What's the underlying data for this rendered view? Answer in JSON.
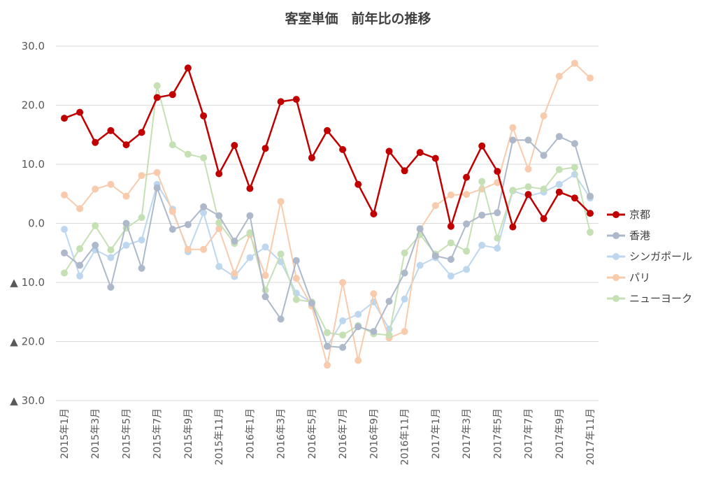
{
  "chart_data": {
    "type": "line",
    "title": "客室単価　前年比の推移",
    "xlabel": "",
    "ylabel": "",
    "ylim": [
      -30,
      30
    ],
    "yticks": [
      {
        "value": 30,
        "label": "30.0"
      },
      {
        "value": 20,
        "label": "20.0"
      },
      {
        "value": 10,
        "label": "10.0"
      },
      {
        "value": 0,
        "label": "0.0"
      },
      {
        "value": -10,
        "label": "▲ 10.0"
      },
      {
        "value": -20,
        "label": "▲ 20.0"
      },
      {
        "value": -30,
        "label": "▲ 30.0"
      }
    ],
    "grid": true,
    "legend_position": "right",
    "categories": [
      "2015年1月",
      "2015年2月",
      "2015年3月",
      "2015年4月",
      "2015年5月",
      "2015年6月",
      "2015年7月",
      "2015年8月",
      "2015年9月",
      "2015年10月",
      "2015年11月",
      "2015年12月",
      "2016年1月",
      "2016年2月",
      "2016年3月",
      "2016年4月",
      "2016年5月",
      "2016年6月",
      "2016年7月",
      "2016年8月",
      "2016年9月",
      "2016年10月",
      "2016年11月",
      "2016年12月",
      "2017年1月",
      "2017年2月",
      "2017年3月",
      "2017年4月",
      "2017年5月",
      "2017年6月",
      "2017年7月",
      "2017年8月",
      "2017年9月",
      "2017年10月",
      "2017年11月"
    ],
    "tick_labels": [
      "2015年1月",
      "",
      "2015年3月",
      "",
      "2015年5月",
      "",
      "2015年7月",
      "",
      "2015年9月",
      "",
      "2015年11月",
      "",
      "2016年1月",
      "",
      "2016年3月",
      "",
      "2016年5月",
      "",
      "2016年7月",
      "",
      "2016年9月",
      "",
      "2016年11月",
      "",
      "2017年1月",
      "",
      "2017年3月",
      "",
      "2017年5月",
      "",
      "2017年7月",
      "",
      "2017年9月",
      "",
      "2017年11月"
    ],
    "series": [
      {
        "name": "シンガポール",
        "color": "#bdd7ee",
        "width": 2,
        "values": [
          -1.0,
          -8.9,
          -4.5,
          -5.8,
          -3.7,
          -2.8,
          6.6,
          2.4,
          -4.8,
          1.8,
          -7.3,
          -9.0,
          -5.8,
          -4.0,
          -6.5,
          -11.8,
          -13.4,
          -20.8,
          -16.5,
          -15.4,
          -13.3,
          -17.9,
          -12.8,
          -7.1,
          -5.8,
          -8.9,
          -7.8,
          -3.7,
          -4.2,
          5.5,
          4.6,
          5.3,
          6.6,
          8.3,
          4.3
        ]
      },
      {
        "name": "パリ",
        "color": "#f8cbad",
        "width": 2,
        "values": [
          4.8,
          2.5,
          5.8,
          6.6,
          4.6,
          8.1,
          8.6,
          2.0,
          -4.4,
          -4.4,
          -0.9,
          -8.5,
          -1.9,
          -8.8,
          3.7,
          -9.3,
          -14.0,
          -24.0,
          -10.0,
          -23.2,
          -11.9,
          -19.4,
          -18.3,
          -1.0,
          3.0,
          4.8,
          4.9,
          5.8,
          6.9,
          16.2,
          9.2,
          18.2,
          24.9,
          27.1,
          24.6
        ]
      },
      {
        "name": "ニューヨーク",
        "color": "#c5e0b4",
        "width": 2,
        "values": [
          -8.4,
          -4.3,
          -0.4,
          -4.5,
          -0.8,
          1.0,
          23.3,
          13.3,
          11.7,
          11.1,
          0.1,
          -3.4,
          -1.6,
          -11.3,
          -5.2,
          -12.9,
          -13.3,
          -18.5,
          -18.9,
          -17.3,
          -18.7,
          -18.9,
          -5.0,
          -1.9,
          -5.2,
          -3.3,
          -4.7,
          7.1,
          -2.5,
          5.6,
          6.2,
          5.8,
          9.1,
          9.5,
          -1.5
        ]
      },
      {
        "name": "香港",
        "color": "#adb9ca",
        "width": 2,
        "values": [
          -5.0,
          -7.1,
          -3.7,
          -10.8,
          0.0,
          -7.6,
          6.0,
          -1.0,
          -0.2,
          2.8,
          1.3,
          -3.0,
          1.3,
          -12.4,
          -16.2,
          -6.3,
          -13.5,
          -20.8,
          -21.0,
          -17.5,
          -18.3,
          -13.2,
          -8.4,
          -0.9,
          -5.5,
          -6.1,
          -0.1,
          1.4,
          1.8,
          14.1,
          14.1,
          11.5,
          14.7,
          13.5,
          4.6
        ]
      },
      {
        "name": "京都",
        "color": "#c00000",
        "width": 2.5,
        "values": [
          17.8,
          18.8,
          13.7,
          15.7,
          13.3,
          15.4,
          21.3,
          21.8,
          26.3,
          18.2,
          8.4,
          13.2,
          5.9,
          12.7,
          20.6,
          21.0,
          11.1,
          15.7,
          12.5,
          6.6,
          1.6,
          12.2,
          8.9,
          12.0,
          11.0,
          -0.5,
          7.8,
          13.1,
          8.8,
          -0.6,
          4.9,
          0.8,
          5.3,
          4.3,
          1.7
        ]
      }
    ],
    "legend": [
      {
        "name": "京都",
        "color": "#c00000"
      },
      {
        "name": "香港",
        "color": "#adb9ca"
      },
      {
        "name": "シンガポール",
        "color": "#bdd7ee"
      },
      {
        "name": "パリ",
        "color": "#f8cbad"
      },
      {
        "name": "ニューヨーク",
        "color": "#c5e0b4"
      }
    ]
  }
}
